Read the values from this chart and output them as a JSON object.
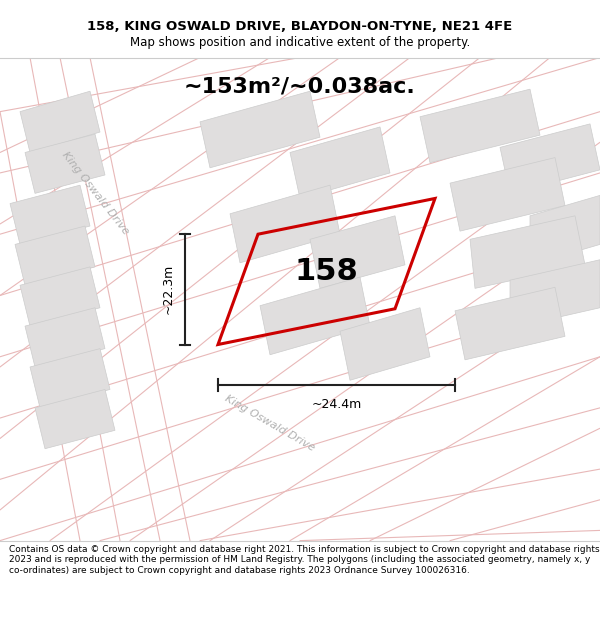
{
  "title_line1": "158, KING OSWALD DRIVE, BLAYDON-ON-TYNE, NE21 4FE",
  "title_line2": "Map shows position and indicative extent of the property.",
  "area_label": "~153m²/~0.038ac.",
  "plot_number": "158",
  "dim_vertical": "~22.3m",
  "dim_horizontal": "~24.4m",
  "footer_text": "Contains OS data © Crown copyright and database right 2021. This information is subject to Crown copyright and database rights 2023 and is reproduced with the permission of HM Land Registry. The polygons (including the associated geometry, namely x, y co-ordinates) are subject to Crown copyright and database rights 2023 Ordnance Survey 100026316.",
  "map_bg": "#f7f5f5",
  "road_color": "#e8b8b8",
  "building_color": "#e0dede",
  "building_edge": "#cccccc",
  "plot_outline_color": "#cc0000",
  "dim_line_color": "#222222",
  "road_label_color": "#b0b0b0",
  "street_name": "King Oswald Drive",
  "title_fontsize": 9.5,
  "subtitle_fontsize": 8.5,
  "area_fontsize": 16,
  "number_fontsize": 22,
  "footer_fontsize": 6.5
}
